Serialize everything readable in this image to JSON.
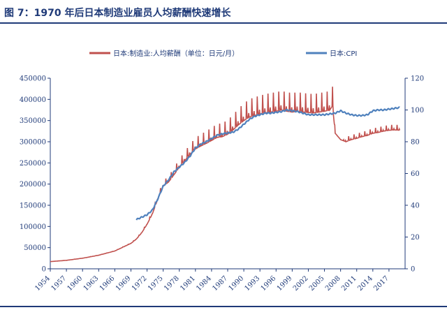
{
  "header": {
    "title": "图 7：1970 年后日本制造业雇员人均薪酬快速增长"
  },
  "colors": {
    "wage": "#C0504D",
    "cpi": "#4F81BD",
    "axis": "#1F3A78"
  },
  "chart_data": {
    "type": "line",
    "title": "",
    "x_range": [
      1954,
      2020
    ],
    "x_tick_labels": [
      "1954",
      "1957",
      "1960",
      "1963",
      "1966",
      "1969",
      "1972",
      "1975",
      "1978",
      "1981",
      "1984",
      "1987",
      "1990",
      "1993",
      "1996",
      "1999",
      "2002",
      "2005",
      "2008",
      "2011",
      "2014",
      "2017"
    ],
    "y_left": {
      "range": [
        0,
        450000
      ],
      "tick_labels": [
        "0",
        "50000",
        "100000",
        "150000",
        "200000",
        "250000",
        "300000",
        "350000",
        "400000",
        "450000"
      ]
    },
    "y_right": {
      "range": [
        0,
        120
      ],
      "tick_labels": [
        "0",
        "20",
        "40",
        "60",
        "80",
        "100",
        "120"
      ]
    },
    "legend": {
      "position": "top",
      "wage_label": "日本:制造业:人均薪酬（单位：日元/月）",
      "cpi_label": "日本:CPI"
    },
    "series": [
      {
        "name": "日本:制造业:人均薪酬（单位：日元/月）",
        "axis": "left",
        "x": [
          1954,
          1957,
          1960,
          1963,
          1966,
          1969,
          1970,
          1971,
          1972,
          1973,
          1974,
          1975,
          1976,
          1977,
          1978,
          1979,
          1980,
          1981,
          1982,
          1983,
          1984,
          1985,
          1986,
          1987,
          1988,
          1989,
          1990,
          1991,
          1992,
          1993,
          1994,
          1995,
          1996,
          1997,
          1998,
          1999,
          2000,
          2001,
          2002,
          2003,
          2004,
          2005,
          2006,
          2006.5,
          2007,
          2008,
          2009,
          2010,
          2011,
          2012,
          2013,
          2014,
          2015,
          2016,
          2017,
          2018,
          2019
        ],
        "values": [
          17000,
          20000,
          25000,
          32000,
          42000,
          60000,
          70000,
          85000,
          105000,
          130000,
          165000,
          195000,
          205000,
          222000,
          240000,
          255000,
          270000,
          283000,
          290000,
          296000,
          303000,
          310000,
          312000,
          318000,
          328000,
          340000,
          350000,
          358000,
          362000,
          365000,
          368000,
          370000,
          372000,
          375000,
          372000,
          370000,
          372000,
          370000,
          369000,
          368000,
          370000,
          372000,
          375000,
          385000,
          320000,
          305000,
          300000,
          305000,
          308000,
          312000,
          315000,
          320000,
          322000,
          325000,
          327000,
          328000,
          327000
        ],
        "seasonal_peak": 45000
      },
      {
        "name": "日本:CPI",
        "axis": "right",
        "x": [
          1970,
          1971,
          1972,
          1973,
          1974,
          1975,
          1976,
          1977,
          1978,
          1979,
          1980,
          1981,
          1982,
          1983,
          1984,
          1985,
          1986,
          1987,
          1988,
          1989,
          1990,
          1991,
          1992,
          1993,
          1994,
          1995,
          1996,
          1997,
          1998,
          1999,
          2000,
          2001,
          2002,
          2003,
          2004,
          2005,
          2006,
          2007,
          2008,
          2009,
          2010,
          2011,
          2012,
          2013,
          2014,
          2015,
          2016,
          2017,
          2018,
          2019
        ],
        "values": [
          31,
          32.5,
          34,
          37,
          44,
          52,
          56,
          61,
          64,
          67,
          71,
          76,
          78.5,
          80,
          82,
          84,
          85,
          85.5,
          86,
          88,
          91,
          94,
          96,
          97,
          98,
          98,
          98.5,
          99,
          100,
          99.5,
          99,
          98,
          97,
          97,
          97,
          97,
          97.5,
          98,
          99.5,
          98,
          97,
          96.5,
          96.5,
          97,
          99.5,
          100,
          100,
          100.5,
          101,
          101.5
        ]
      }
    ]
  }
}
